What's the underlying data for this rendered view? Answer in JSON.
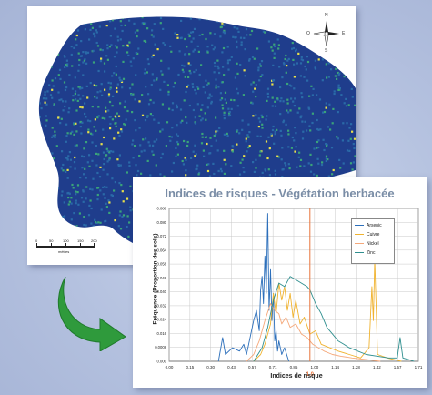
{
  "map": {
    "compass": {
      "north": "N",
      "south": "S",
      "east": "E",
      "west": "O"
    },
    "scale": {
      "ticks": [
        "0",
        "50",
        "100",
        "150",
        "200"
      ],
      "unit": "mètres"
    },
    "colors": {
      "background": "#1f3d8c",
      "low": "#2a6aa8",
      "mid": "#3aa37a",
      "high": "#e8e04a"
    }
  },
  "arrow": {
    "icon": "curved-arrow-icon",
    "color": "#2f9a3c"
  },
  "chart_data": {
    "type": "line",
    "title": "Indices de risques - Végétation herbacée",
    "xlabel": "Indices de risque",
    "ylabel": "Fréquence (Proportion des sols)",
    "xlim": [
      0,
      1.77
    ],
    "ylim": [
      0,
      0.09
    ],
    "x_ticks": [
      "0.00",
      "0.15",
      "0.30",
      "0.43",
      "0.57",
      "0.71",
      "0.85",
      "1.00",
      "1.14",
      "1.28",
      "1.42",
      "1.57",
      "1.71"
    ],
    "y_ticks": [
      "0.000",
      "0.0008",
      "0.016",
      "0.024",
      "0.032",
      "0.040",
      "0.048",
      "0.056",
      "0.064",
      "0.072",
      "0.080",
      "0.088"
    ],
    "reference_line": {
      "x": 1.0,
      "label": "1.0",
      "color": "#e8743b"
    },
    "grid": true,
    "legend_position": "top-right",
    "series": [
      {
        "name": "Arsenic",
        "color": "#2c6fbb",
        "x": [
          0.35,
          0.38,
          0.4,
          0.45,
          0.5,
          0.53,
          0.55,
          0.58,
          0.6,
          0.62,
          0.64,
          0.65,
          0.66,
          0.67,
          0.68,
          0.69,
          0.7,
          0.71,
          0.72,
          0.73,
          0.74,
          0.75,
          0.76,
          0.77,
          0.78,
          0.8,
          0.82,
          0.85
        ],
        "y": [
          0.0,
          0.014,
          0.004,
          0.008,
          0.006,
          0.01,
          0.004,
          0.016,
          0.024,
          0.03,
          0.018,
          0.042,
          0.05,
          0.034,
          0.062,
          0.04,
          0.087,
          0.03,
          0.054,
          0.024,
          0.04,
          0.012,
          0.018,
          0.006,
          0.012,
          0.004,
          0.008,
          0.0
        ]
      },
      {
        "name": "Cuivre",
        "color": "#f0b330",
        "x": [
          0.6,
          0.65,
          0.68,
          0.72,
          0.74,
          0.76,
          0.78,
          0.8,
          0.82,
          0.84,
          0.86,
          0.88,
          0.9,
          0.93,
          0.96,
          1.0,
          1.04,
          1.08,
          1.14,
          1.2,
          1.28,
          1.36,
          1.42,
          1.44,
          1.45,
          1.46,
          1.48,
          1.55,
          1.65
        ],
        "y": [
          0.0,
          0.004,
          0.01,
          0.022,
          0.04,
          0.028,
          0.046,
          0.036,
          0.044,
          0.03,
          0.04,
          0.026,
          0.036,
          0.022,
          0.026,
          0.016,
          0.018,
          0.01,
          0.008,
          0.006,
          0.004,
          0.002,
          0.008,
          0.044,
          0.024,
          0.06,
          0.004,
          0.002,
          0.0
        ]
      },
      {
        "name": "Nickel",
        "color": "#f5a87a",
        "x": [
          0.55,
          0.6,
          0.64,
          0.68,
          0.72,
          0.75,
          0.78,
          0.8,
          0.83,
          0.86,
          0.9,
          0.94,
          0.98,
          1.02,
          1.06,
          1.1,
          1.16,
          1.22,
          1.3,
          1.4,
          1.5
        ],
        "y": [
          0.0,
          0.004,
          0.012,
          0.024,
          0.034,
          0.03,
          0.028,
          0.022,
          0.026,
          0.02,
          0.022,
          0.016,
          0.014,
          0.01,
          0.008,
          0.006,
          0.004,
          0.003,
          0.002,
          0.001,
          0.0
        ]
      },
      {
        "name": "Zinc",
        "color": "#2f8f8f",
        "x": [
          0.6,
          0.66,
          0.7,
          0.74,
          0.78,
          0.82,
          0.86,
          0.9,
          0.94,
          0.98,
          1.0,
          1.04,
          1.08,
          1.12,
          1.16,
          1.2,
          1.24,
          1.28,
          1.34,
          1.4,
          1.48,
          1.56,
          1.62,
          1.64,
          1.66,
          1.7,
          1.74
        ],
        "y": [
          0.0,
          0.008,
          0.02,
          0.036,
          0.046,
          0.044,
          0.05,
          0.048,
          0.046,
          0.044,
          0.042,
          0.034,
          0.028,
          0.02,
          0.016,
          0.012,
          0.01,
          0.008,
          0.006,
          0.004,
          0.003,
          0.002,
          0.002,
          0.014,
          0.002,
          0.001,
          0.0
        ]
      }
    ]
  }
}
